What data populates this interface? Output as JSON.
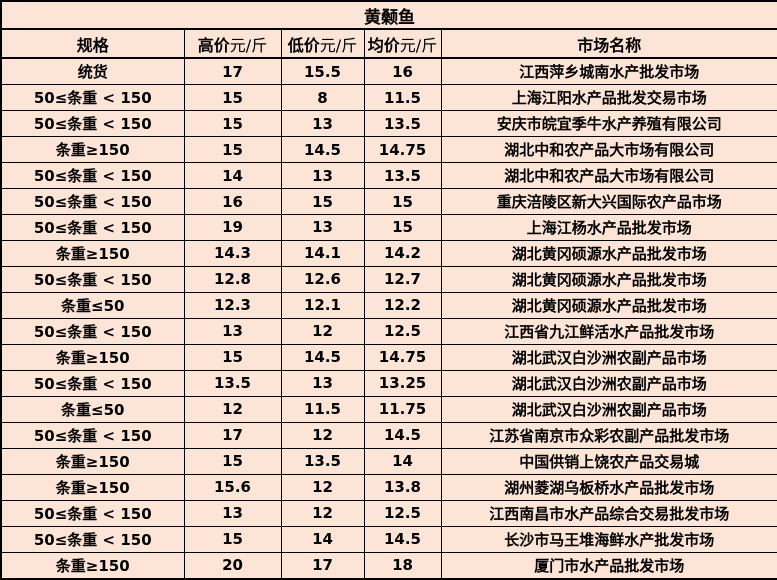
{
  "title": "黄颡鱼",
  "colors": {
    "cell_background": "#FCE4D6",
    "border": "#000000",
    "text": "#000000"
  },
  "table": {
    "headers": [
      {
        "label": "规格",
        "unit": ""
      },
      {
        "label": "高价",
        "unit": "元/斤"
      },
      {
        "label": "低价",
        "unit": "元/斤"
      },
      {
        "label": "均价",
        "unit": "元/斤"
      },
      {
        "label": "市场名称",
        "unit": ""
      }
    ],
    "rows": [
      [
        "统货",
        "17",
        "15.5",
        "16",
        "江西萍乡城南水产批发市场"
      ],
      [
        "50≤条重 < 150",
        "15",
        "8",
        "11.5",
        "上海江阳水产品批发交易市场"
      ],
      [
        "50≤条重 < 150",
        "15",
        "13",
        "13.5",
        "安庆市皖宜季牛水产养殖有限公司"
      ],
      [
        "条重≥150",
        "15",
        "14.5",
        "14.75",
        "湖北中和农产品大市场有限公司"
      ],
      [
        "50≤条重 < 150",
        "14",
        "13",
        "13.5",
        "湖北中和农产品大市场有限公司"
      ],
      [
        "50≤条重 < 150",
        "16",
        "15",
        "15",
        "重庆涪陵区新大兴国际农产品市场"
      ],
      [
        "50≤条重 < 150",
        "19",
        "13",
        "15",
        "上海江杨水产品批发市场"
      ],
      [
        "条重≥150",
        "14.3",
        "14.1",
        "14.2",
        "湖北黄冈硕源水产品批发市场"
      ],
      [
        "50≤条重 < 150",
        "12.8",
        "12.6",
        "12.7",
        "湖北黄冈硕源水产品批发市场"
      ],
      [
        "条重≤50",
        "12.3",
        "12.1",
        "12.2",
        "湖北黄冈硕源水产品批发市场"
      ],
      [
        "50≤条重 < 150",
        "13",
        "12",
        "12.5",
        "江西省九江鲜活水产品批发市场"
      ],
      [
        "条重≥150",
        "15",
        "14.5",
        "14.75",
        "湖北武汉白沙洲农副产品市场"
      ],
      [
        "50≤条重 < 150",
        "13.5",
        "13",
        "13.25",
        "湖北武汉白沙洲农副产品市场"
      ],
      [
        "条重≤50",
        "12",
        "11.5",
        "11.75",
        "湖北武汉白沙洲农副产品市场"
      ],
      [
        "50≤条重 < 150",
        "17",
        "12",
        "14.5",
        "江苏省南京市众彩农副产品批发市场"
      ],
      [
        "条重≥150",
        "15",
        "13.5",
        "14",
        "中国供销上饶农产品交易城"
      ],
      [
        "条重≥150",
        "15.6",
        "12",
        "13.8",
        "湖州菱湖乌板桥水产品批发市场"
      ],
      [
        "50≤条重 < 150",
        "13",
        "12",
        "12.5",
        "江西南昌市水产品综合交易批发市场"
      ],
      [
        "50≤条重 < 150",
        "15",
        "14",
        "14.5",
        "长沙市马王堆海鲜水产批发市场"
      ],
      [
        "条重≥150",
        "20",
        "17",
        "18",
        "厦门市水产品批发市场"
      ]
    ]
  }
}
